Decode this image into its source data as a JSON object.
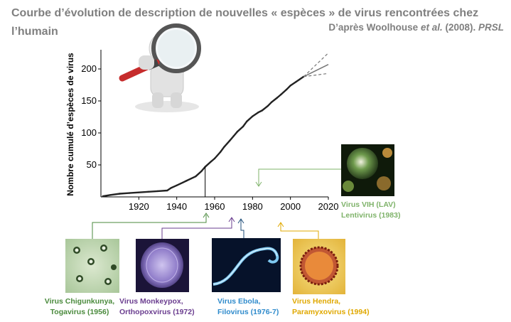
{
  "header": {
    "title": "Courbe d’évolution de description de nouvelles « espèces » de virus rencontrées chez l’humain",
    "source_prefix": "D’après Woolhouse ",
    "source_italic": "et al.",
    "source_year": " (2008). ",
    "source_journal": "PRSL"
  },
  "colors": {
    "chikungunya": "#4a8a3c",
    "monkeypox": "#6a3d8f",
    "ebola": "#2f8bcc",
    "hendra": "#e0a800",
    "vih": "#7fb36a",
    "curve": "#222222",
    "title": "#7f7f7f"
  },
  "chart_data": {
    "type": "line",
    "ylabel": "Nombre cumulé d’espèces de virus",
    "xlabel": "",
    "xlim": [
      1900,
      2020
    ],
    "ylim": [
      0,
      230
    ],
    "xticks": [
      1920,
      1940,
      1960,
      1980,
      2000,
      2020
    ],
    "yticks": [
      50,
      100,
      150,
      200
    ],
    "series": [
      {
        "x": [
          1901,
          1905,
          1910,
          1915,
          1920,
          1925,
          1930,
          1935,
          1937,
          1940,
          1945,
          1950,
          1953,
          1955,
          1958,
          1960,
          1963,
          1965,
          1968,
          1970,
          1972,
          1975,
          1977,
          1980,
          1983,
          1985,
          1988,
          1990,
          1993,
          1995,
          1998,
          2000,
          2003,
          2005,
          2007
        ],
        "y": [
          1,
          3,
          5,
          6,
          7,
          8,
          9,
          10,
          14,
          18,
          25,
          32,
          40,
          47,
          55,
          60,
          70,
          78,
          88,
          95,
          102,
          110,
          118,
          126,
          132,
          135,
          142,
          148,
          155,
          160,
          168,
          174,
          180,
          184,
          188
        ]
      }
    ],
    "projection": {
      "x": [
        2007,
        2020
      ],
      "center": [
        188,
        207
      ],
      "upper": [
        188,
        225
      ],
      "lower": [
        188,
        193
      ]
    },
    "markers": [
      {
        "year": 1955,
        "y": 47
      }
    ]
  },
  "annotations": [
    {
      "id": "chikungunya",
      "line1": "Virus Chigunkunya,",
      "line2": "Togavirus (1956)",
      "year": 1956
    },
    {
      "id": "monkeypox",
      "line1": "Virus Monkeypox,",
      "line2": "Orthopoxvirus (1972)",
      "year": 1972
    },
    {
      "id": "ebola",
      "line1": "Virus Ebola,",
      "line2": "Filovirus (1976-7)",
      "year": 1977
    },
    {
      "id": "hendra",
      "line1": "Virus Hendra,",
      "line2": "Paramyxovirus (1994)",
      "year": 1994
    },
    {
      "id": "vih",
      "line1": "Virus VIH (LAV)",
      "line2": "Lentivirus (1983)",
      "year": 1983
    }
  ]
}
